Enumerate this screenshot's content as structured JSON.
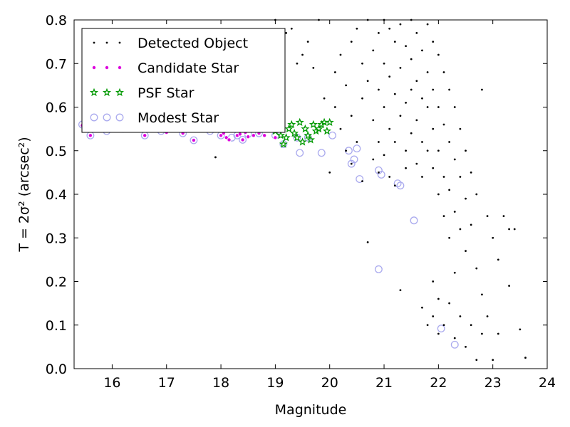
{
  "chart_data": {
    "type": "scatter",
    "title": "",
    "xlabel": "Magnitude",
    "ylabel": "T = 2σ² (arcsec²)",
    "xlim": [
      15.3,
      24
    ],
    "ylim": [
      0,
      0.8
    ],
    "xticks": [
      "16",
      "17",
      "18",
      "19",
      "20",
      "21",
      "22",
      "23",
      "24"
    ],
    "yticks": [
      "0.0",
      "0.1",
      "0.2",
      "0.3",
      "0.4",
      "0.5",
      "0.6",
      "0.7",
      "0.8"
    ],
    "grid": false,
    "legend_position": "top-left",
    "series": [
      {
        "name": "Detected Object",
        "marker": "dot",
        "color": "#000000",
        "points": [
          [
            17.9,
            0.485
          ],
          [
            18.9,
            0.56
          ],
          [
            19.0,
            0.8
          ],
          [
            19.2,
            0.77
          ],
          [
            19.3,
            0.78
          ],
          [
            19.4,
            0.7
          ],
          [
            19.5,
            0.72
          ],
          [
            19.6,
            0.75
          ],
          [
            19.7,
            0.69
          ],
          [
            19.8,
            0.8
          ],
          [
            19.9,
            0.62
          ],
          [
            20.0,
            0.45
          ],
          [
            20.1,
            0.68
          ],
          [
            20.1,
            0.6
          ],
          [
            20.2,
            0.72
          ],
          [
            20.2,
            0.55
          ],
          [
            20.3,
            0.65
          ],
          [
            20.3,
            0.5
          ],
          [
            20.4,
            0.75
          ],
          [
            20.4,
            0.58
          ],
          [
            20.4,
            0.47
          ],
          [
            20.5,
            0.78
          ],
          [
            20.5,
            0.52
          ],
          [
            20.6,
            0.7
          ],
          [
            20.6,
            0.62
          ],
          [
            20.6,
            0.43
          ],
          [
            20.7,
            0.8
          ],
          [
            20.7,
            0.66
          ],
          [
            20.7,
            0.29
          ],
          [
            20.8,
            0.73
          ],
          [
            20.8,
            0.57
          ],
          [
            20.8,
            0.48
          ],
          [
            20.9,
            0.77
          ],
          [
            20.9,
            0.64
          ],
          [
            20.9,
            0.52
          ],
          [
            20.9,
            0.45
          ],
          [
            21.0,
            0.8
          ],
          [
            21.0,
            0.7
          ],
          [
            21.0,
            0.6
          ],
          [
            21.0,
            0.49
          ],
          [
            21.1,
            0.78
          ],
          [
            21.1,
            0.67
          ],
          [
            21.1,
            0.55
          ],
          [
            21.1,
            0.44
          ],
          [
            21.2,
            0.75
          ],
          [
            21.2,
            0.63
          ],
          [
            21.2,
            0.52
          ],
          [
            21.2,
            0.42
          ],
          [
            21.3,
            0.79
          ],
          [
            21.3,
            0.69
          ],
          [
            21.3,
            0.58
          ],
          [
            21.3,
            0.18
          ],
          [
            21.4,
            0.74
          ],
          [
            21.4,
            0.61
          ],
          [
            21.4,
            0.5
          ],
          [
            21.4,
            0.46
          ],
          [
            21.5,
            0.8
          ],
          [
            21.5,
            0.71
          ],
          [
            21.5,
            0.64
          ],
          [
            21.5,
            0.54
          ],
          [
            21.6,
            0.77
          ],
          [
            21.6,
            0.66
          ],
          [
            21.6,
            0.57
          ],
          [
            21.6,
            0.47
          ],
          [
            21.7,
            0.73
          ],
          [
            21.7,
            0.62
          ],
          [
            21.7,
            0.52
          ],
          [
            21.7,
            0.44
          ],
          [
            21.7,
            0.14
          ],
          [
            21.8,
            0.79
          ],
          [
            21.8,
            0.68
          ],
          [
            21.8,
            0.6
          ],
          [
            21.8,
            0.5
          ],
          [
            21.8,
            0.1
          ],
          [
            21.9,
            0.75
          ],
          [
            21.9,
            0.64
          ],
          [
            21.9,
            0.55
          ],
          [
            21.9,
            0.46
          ],
          [
            21.9,
            0.2
          ],
          [
            21.9,
            0.12
          ],
          [
            22.0,
            0.72
          ],
          [
            22.0,
            0.6
          ],
          [
            22.0,
            0.5
          ],
          [
            22.0,
            0.4
          ],
          [
            22.0,
            0.16
          ],
          [
            22.0,
            0.08
          ],
          [
            22.1,
            0.68
          ],
          [
            22.1,
            0.56
          ],
          [
            22.1,
            0.44
          ],
          [
            22.1,
            0.35
          ],
          [
            22.1,
            0.1
          ],
          [
            22.2,
            0.64
          ],
          [
            22.2,
            0.52
          ],
          [
            22.2,
            0.41
          ],
          [
            22.2,
            0.3
          ],
          [
            22.2,
            0.15
          ],
          [
            22.3,
            0.6
          ],
          [
            22.3,
            0.48
          ],
          [
            22.3,
            0.36
          ],
          [
            22.3,
            0.22
          ],
          [
            22.3,
            0.07
          ],
          [
            22.4,
            0.55
          ],
          [
            22.4,
            0.44
          ],
          [
            22.4,
            0.32
          ],
          [
            22.4,
            0.12
          ],
          [
            22.5,
            0.5
          ],
          [
            22.5,
            0.39
          ],
          [
            22.5,
            0.27
          ],
          [
            22.5,
            0.05
          ],
          [
            22.6,
            0.45
          ],
          [
            22.6,
            0.33
          ],
          [
            22.6,
            0.1
          ],
          [
            22.7,
            0.4
          ],
          [
            22.7,
            0.23
          ],
          [
            22.7,
            0.02
          ],
          [
            22.8,
            0.64
          ],
          [
            22.8,
            0.17
          ],
          [
            22.8,
            0.08
          ],
          [
            22.9,
            0.35
          ],
          [
            22.9,
            0.12
          ],
          [
            23.0,
            0.3
          ],
          [
            23.0,
            0.02
          ],
          [
            23.1,
            0.25
          ],
          [
            23.1,
            0.08
          ],
          [
            23.2,
            0.35
          ],
          [
            23.3,
            0.32
          ],
          [
            23.3,
            0.19
          ],
          [
            23.4,
            0.32
          ],
          [
            23.5,
            0.09
          ],
          [
            23.6,
            0.025
          ]
        ]
      },
      {
        "name": "Candidate Star",
        "marker": "circle-small",
        "color": "#dd00dd",
        "points": [
          [
            15.45,
            0.558
          ],
          [
            15.5,
            0.565
          ],
          [
            15.6,
            0.535
          ],
          [
            15.8,
            0.56
          ],
          [
            16.0,
            0.552
          ],
          [
            16.3,
            0.548
          ],
          [
            16.6,
            0.535
          ],
          [
            16.8,
            0.548
          ],
          [
            17.0,
            0.542
          ],
          [
            17.3,
            0.54
          ],
          [
            17.5,
            0.524
          ],
          [
            17.7,
            0.548
          ],
          [
            18.0,
            0.535
          ],
          [
            18.05,
            0.54
          ],
          [
            18.1,
            0.53
          ],
          [
            18.15,
            0.525
          ],
          [
            18.2,
            0.545
          ],
          [
            18.3,
            0.535
          ],
          [
            18.35,
            0.538
          ],
          [
            18.4,
            0.525
          ],
          [
            18.45,
            0.542
          ],
          [
            18.5,
            0.532
          ],
          [
            18.6,
            0.535
          ],
          [
            18.7,
            0.54
          ],
          [
            18.8,
            0.535
          ],
          [
            19.0,
            0.53
          ],
          [
            19.1,
            0.545
          ]
        ]
      },
      {
        "name": "PSF Star",
        "marker": "star",
        "color": "#009900",
        "points": [
          [
            19.0,
            0.545
          ],
          [
            19.1,
            0.535
          ],
          [
            19.15,
            0.515
          ],
          [
            19.2,
            0.53
          ],
          [
            19.25,
            0.55
          ],
          [
            19.3,
            0.56
          ],
          [
            19.35,
            0.54
          ],
          [
            19.4,
            0.53
          ],
          [
            19.45,
            0.565
          ],
          [
            19.5,
            0.52
          ],
          [
            19.55,
            0.55
          ],
          [
            19.6,
            0.535
          ],
          [
            19.65,
            0.525
          ],
          [
            19.7,
            0.56
          ],
          [
            19.75,
            0.545
          ],
          [
            19.8,
            0.55
          ],
          [
            19.85,
            0.56
          ],
          [
            19.9,
            0.565
          ],
          [
            19.95,
            0.545
          ],
          [
            20.0,
            0.565
          ]
        ]
      },
      {
        "name": "Modest Star",
        "marker": "circle-open",
        "color": "#aaaaee",
        "points": [
          [
            15.45,
            0.56
          ],
          [
            15.6,
            0.535
          ],
          [
            15.9,
            0.545
          ],
          [
            16.2,
            0.55
          ],
          [
            16.6,
            0.535
          ],
          [
            16.9,
            0.545
          ],
          [
            17.3,
            0.54
          ],
          [
            17.5,
            0.524
          ],
          [
            17.8,
            0.545
          ],
          [
            18.0,
            0.535
          ],
          [
            18.2,
            0.53
          ],
          [
            18.3,
            0.535
          ],
          [
            18.4,
            0.525
          ],
          [
            18.5,
            0.538
          ],
          [
            18.7,
            0.54
          ],
          [
            19.0,
            0.535
          ],
          [
            19.15,
            0.515
          ],
          [
            19.4,
            0.53
          ],
          [
            19.45,
            0.495
          ],
          [
            19.6,
            0.53
          ],
          [
            19.85,
            0.495
          ],
          [
            20.05,
            0.535
          ],
          [
            20.35,
            0.5
          ],
          [
            20.4,
            0.47
          ],
          [
            20.45,
            0.48
          ],
          [
            20.5,
            0.505
          ],
          [
            20.55,
            0.435
          ],
          [
            20.9,
            0.455
          ],
          [
            20.95,
            0.445
          ],
          [
            21.25,
            0.425
          ],
          [
            21.3,
            0.42
          ],
          [
            21.55,
            0.34
          ],
          [
            20.9,
            0.228
          ],
          [
            22.05,
            0.092
          ],
          [
            22.3,
            0.055
          ]
        ]
      }
    ]
  }
}
